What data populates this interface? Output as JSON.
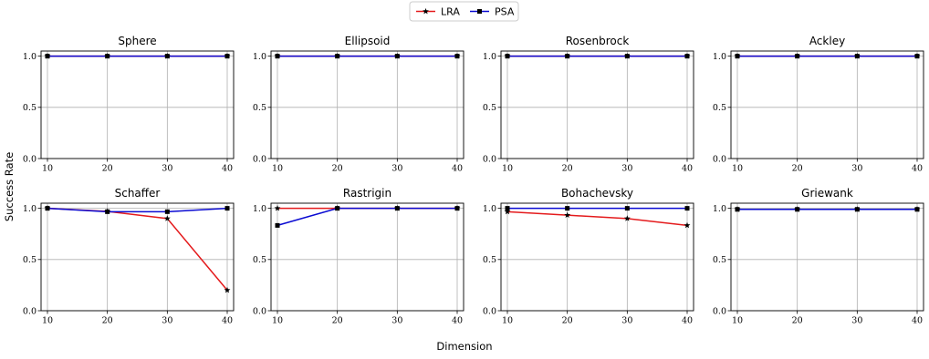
{
  "legend": {
    "position": "top-center",
    "entries": [
      {
        "name": "LRA",
        "color": "#e41a1c",
        "marker": "star"
      },
      {
        "name": "PSA",
        "color": "#0a0ad2",
        "marker": "square"
      }
    ]
  },
  "xlabel": "Dimension",
  "ylabel": "Success Rate",
  "chart_data": [
    {
      "type": "line",
      "title": "Sphere",
      "x": [
        10,
        20,
        30,
        40
      ],
      "xlim": [
        10,
        40
      ],
      "ylim": [
        0,
        1
      ],
      "grid": true,
      "series": [
        {
          "name": "LRA",
          "values": [
            1.0,
            1.0,
            1.0,
            1.0
          ]
        },
        {
          "name": "PSA",
          "values": [
            1.0,
            1.0,
            1.0,
            1.0
          ]
        }
      ]
    },
    {
      "type": "line",
      "title": "Ellipsoid",
      "x": [
        10,
        20,
        30,
        40
      ],
      "xlim": [
        10,
        40
      ],
      "ylim": [
        0,
        1
      ],
      "grid": true,
      "series": [
        {
          "name": "LRA",
          "values": [
            1.0,
            1.0,
            1.0,
            1.0
          ]
        },
        {
          "name": "PSA",
          "values": [
            1.0,
            1.0,
            1.0,
            1.0
          ]
        }
      ]
    },
    {
      "type": "line",
      "title": "Rosenbrock",
      "x": [
        10,
        20,
        30,
        40
      ],
      "xlim": [
        10,
        40
      ],
      "ylim": [
        0,
        1
      ],
      "grid": true,
      "series": [
        {
          "name": "LRA",
          "values": [
            1.0,
            1.0,
            1.0,
            1.0
          ]
        },
        {
          "name": "PSA",
          "values": [
            1.0,
            1.0,
            1.0,
            1.0
          ]
        }
      ]
    },
    {
      "type": "line",
      "title": "Ackley",
      "x": [
        10,
        20,
        30,
        40
      ],
      "xlim": [
        10,
        40
      ],
      "ylim": [
        0,
        1
      ],
      "grid": true,
      "series": [
        {
          "name": "LRA",
          "values": [
            1.0,
            1.0,
            1.0,
            1.0
          ]
        },
        {
          "name": "PSA",
          "values": [
            1.0,
            1.0,
            1.0,
            1.0
          ]
        }
      ]
    },
    {
      "type": "line",
      "title": "Schaffer",
      "x": [
        10,
        20,
        30,
        40
      ],
      "xlim": [
        10,
        40
      ],
      "ylim": [
        0,
        1
      ],
      "grid": true,
      "series": [
        {
          "name": "LRA",
          "values": [
            1.0,
            0.97,
            0.9,
            0.2
          ]
        },
        {
          "name": "PSA",
          "values": [
            1.0,
            0.967,
            0.967,
            1.0
          ]
        }
      ]
    },
    {
      "type": "line",
      "title": "Rastrigin",
      "x": [
        10,
        20,
        30,
        40
      ],
      "xlim": [
        10,
        40
      ],
      "ylim": [
        0,
        1
      ],
      "grid": true,
      "series": [
        {
          "name": "LRA",
          "values": [
            1.0,
            1.0,
            1.0,
            1.0
          ]
        },
        {
          "name": "PSA",
          "values": [
            0.833,
            1.0,
            1.0,
            1.0
          ]
        }
      ]
    },
    {
      "type": "line",
      "title": "Bohachevsky",
      "x": [
        10,
        20,
        30,
        40
      ],
      "xlim": [
        10,
        40
      ],
      "ylim": [
        0,
        1
      ],
      "grid": true,
      "series": [
        {
          "name": "LRA",
          "values": [
            0.967,
            0.933,
            0.9,
            0.833
          ]
        },
        {
          "name": "PSA",
          "values": [
            1.0,
            1.0,
            1.0,
            1.0
          ]
        }
      ]
    },
    {
      "type": "line",
      "title": "Griewank",
      "x": [
        10,
        20,
        30,
        40
      ],
      "xlim": [
        10,
        40
      ],
      "ylim": [
        0,
        1
      ],
      "grid": true,
      "series": [
        {
          "name": "LRA",
          "values": [
            0.99,
            0.99,
            0.99,
            0.99
          ]
        },
        {
          "name": "PSA",
          "values": [
            0.99,
            0.99,
            0.99,
            0.99
          ]
        }
      ]
    }
  ]
}
